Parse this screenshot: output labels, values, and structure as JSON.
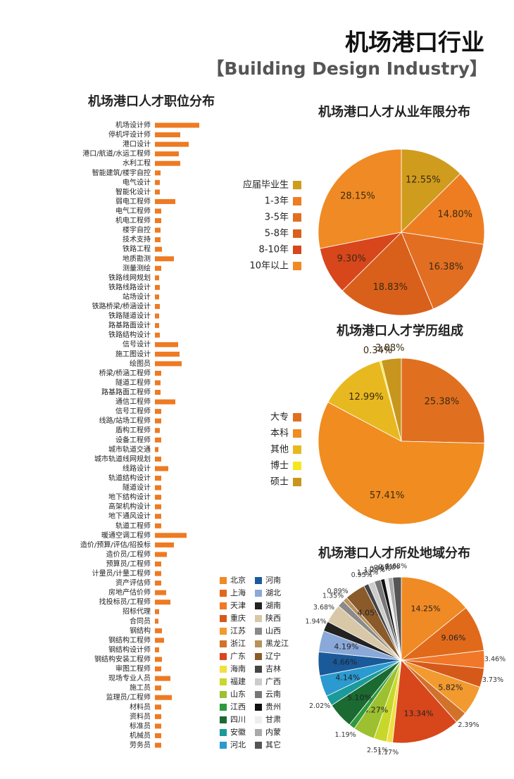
{
  "header": {
    "title": "机场港口行业",
    "subtitle": "【Building Design Industry】"
  },
  "chart_data": [
    {
      "type": "bar",
      "horizontal": true,
      "title": "机场港口人才职位分布",
      "color": "#ee7a22",
      "categories": [
        "机场设计师",
        "停机坪设计师",
        "港口设计",
        "港口/航道/水运工程师",
        "水利工程",
        "智能建筑/楼宇自控",
        "电气设计",
        "智能化设计",
        "弱电工程师",
        "电气工程师",
        "机电工程师",
        "楼宇自控",
        "技术支持",
        "铁路工程",
        "地质勘测",
        "测量测绘",
        "铁路线网规划",
        "铁路线路设计",
        "站场设计",
        "铁路桥梁/桥涵设计",
        "铁路隧道设计",
        "路基路面设计",
        "铁路结构设计",
        "信号设计",
        "施工图设计",
        "绘图员",
        "桥梁/桥涵工程师",
        "隧道工程师",
        "路基路面工程师",
        "通信工程师",
        "信号工程师",
        "线路/站场工程师",
        "盾构工程师",
        "设备工程师",
        "城市轨道交通",
        "城市轨道线网规划",
        "线路设计",
        "轨道结构设计",
        "隧道设计",
        "地下结构设计",
        "高架机构设计",
        "地下通风设计",
        "轨道工程师",
        "暖通空调工程师",
        "造价/预算/评估/招投标",
        "造价员/工程师",
        "预算员/工程师",
        "计量员/计量工程师",
        "资产评估师",
        "房地产估价师",
        "找投标员/工程师",
        "招标代理",
        "合同员",
        "钢结构",
        "钢结构工程师",
        "钢结构设计师",
        "钢结构安装工程师",
        "审图工程师",
        "现场专业人员",
        "施工员",
        "监理员/工程师",
        "材料员",
        "资料员",
        "标准员",
        "机械员",
        "劳务员"
      ],
      "values": [
        63,
        36,
        48,
        34,
        36,
        8,
        7,
        7,
        29,
        9,
        9,
        8,
        8,
        10,
        27,
        9,
        6,
        7,
        6,
        7,
        6,
        6,
        7,
        33,
        35,
        38,
        9,
        8,
        8,
        29,
        9,
        9,
        7,
        9,
        5,
        9,
        19,
        9,
        9,
        9,
        9,
        9,
        9,
        45,
        27,
        17,
        9,
        9,
        9,
        16,
        22,
        6,
        5,
        10,
        13,
        6,
        10,
        9,
        22,
        9,
        24,
        9,
        9,
        9,
        9,
        9
      ]
    },
    {
      "type": "pie",
      "title": "机场港口人才从业年限分布",
      "categories": [
        "应届毕业生",
        "1-3年",
        "3-5年",
        "5-8年",
        "8-10年",
        "10年以上"
      ],
      "values": [
        12.55,
        14.8,
        16.38,
        18.83,
        9.3,
        28.15
      ],
      "value_labels": [
        "12.55%",
        "14.80%",
        "16.38%",
        "18.83%",
        "9.30%",
        "28.15%"
      ],
      "colors": [
        "#cf9c1e",
        "#ee7d22",
        "#e26e22",
        "#d9601a",
        "#d8461c",
        "#f08a24"
      ]
    },
    {
      "type": "pie",
      "title": "机场港口人才学历组成",
      "categories": [
        "大专",
        "本科",
        "其他",
        "博士",
        "硕士"
      ],
      "values": [
        25.38,
        57.41,
        12.99,
        0.34,
        3.88
      ],
      "value_labels": [
        "25.38%",
        "57.41%",
        "12.99%",
        "0.34%",
        "3.88%"
      ],
      "colors": [
        "#e07020",
        "#f08c20",
        "#e8b820",
        "#f5e61e",
        "#c8961e"
      ]
    },
    {
      "type": "pie",
      "title": "机场港口人才所处地域分布",
      "categories": [
        "北京",
        "上海",
        "天津",
        "重庆",
        "江苏",
        "浙江",
        "广东",
        "海南",
        "福建",
        "山东",
        "江西",
        "四川",
        "安徽",
        "河北",
        "河南",
        "湖北",
        "湖南",
        "陕西",
        "山西",
        "黑龙江",
        "辽宁",
        "吉林",
        "广西",
        "云南",
        "贵州",
        "甘肃",
        "内蒙",
        "其它"
      ],
      "values": [
        14.25,
        9.06,
        3.46,
        3.73,
        5.82,
        2.39,
        13.34,
        1.17,
        2.51,
        4.27,
        1.19,
        5.1,
        2.02,
        4.14,
        4.66,
        4.19,
        1.94,
        3.68,
        1.35,
        0.89,
        4.05,
        0.95,
        1.23,
        1.25,
        0.79,
        0.67,
        0.91,
        1.68
      ],
      "value_labels": [
        "14.25%",
        "9.06%",
        "3.46%",
        "3.73%",
        "5.82%",
        "2.39%",
        "13.34%",
        "1.17%",
        "2.51%",
        "4.27%",
        "1.19%",
        "5.10%",
        "2.02%",
        "4.14%",
        "4.66%",
        "4.19%",
        "1.94%",
        "3.68%",
        "1.35%",
        "0.89%",
        "4.05%",
        "0.95%",
        "1.23%",
        "1.25%",
        "0.79%",
        "0.67%",
        "0.91%",
        "1.68%"
      ],
      "colors": [
        "#f08a24",
        "#e06a1a",
        "#f07828",
        "#d55a1a",
        "#f29a30",
        "#d2722a",
        "#d8461c",
        "#f0e040",
        "#c8d82a",
        "#9cc030",
        "#2e9a3c",
        "#1a6a32",
        "#1a9a9a",
        "#2a9ad0",
        "#1a5a9a",
        "#8aa8d8",
        "#222222",
        "#d8c8a8",
        "#8a8a8a",
        "#b8925a",
        "#8a5a2a",
        "#444444",
        "#cccccc",
        "#777777",
        "#111111",
        "#eeeeee",
        "#aaaaaa",
        "#555555"
      ]
    }
  ]
}
